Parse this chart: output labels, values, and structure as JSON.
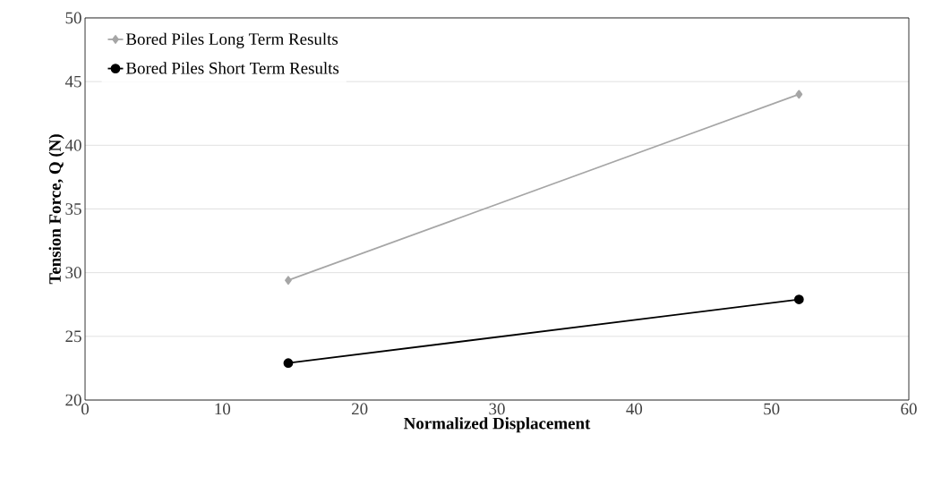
{
  "chart_data": {
    "type": "line",
    "xlabel": "Normalized Displacement",
    "ylabel": "Tension Force, Q (N)",
    "xlim": [
      0,
      60
    ],
    "xticks": [
      0,
      10,
      20,
      30,
      40,
      50,
      60
    ],
    "ylim": [
      20,
      50
    ],
    "yticks": [
      20,
      25,
      30,
      35,
      40,
      45,
      50
    ],
    "grid": "y",
    "x": [
      14.8,
      52
    ],
    "legend": "top left",
    "line_style": "solid",
    "series": [
      {
        "name": "Bored Piles Long Term Results",
        "color": "#a6a6a6",
        "marker": "diamond",
        "values": [
          29.4,
          44
        ]
      },
      {
        "name": "Bored Piles Short Term Results",
        "color": "#000000",
        "marker": "circle",
        "values": [
          22.9,
          27.9
        ]
      }
    ]
  }
}
